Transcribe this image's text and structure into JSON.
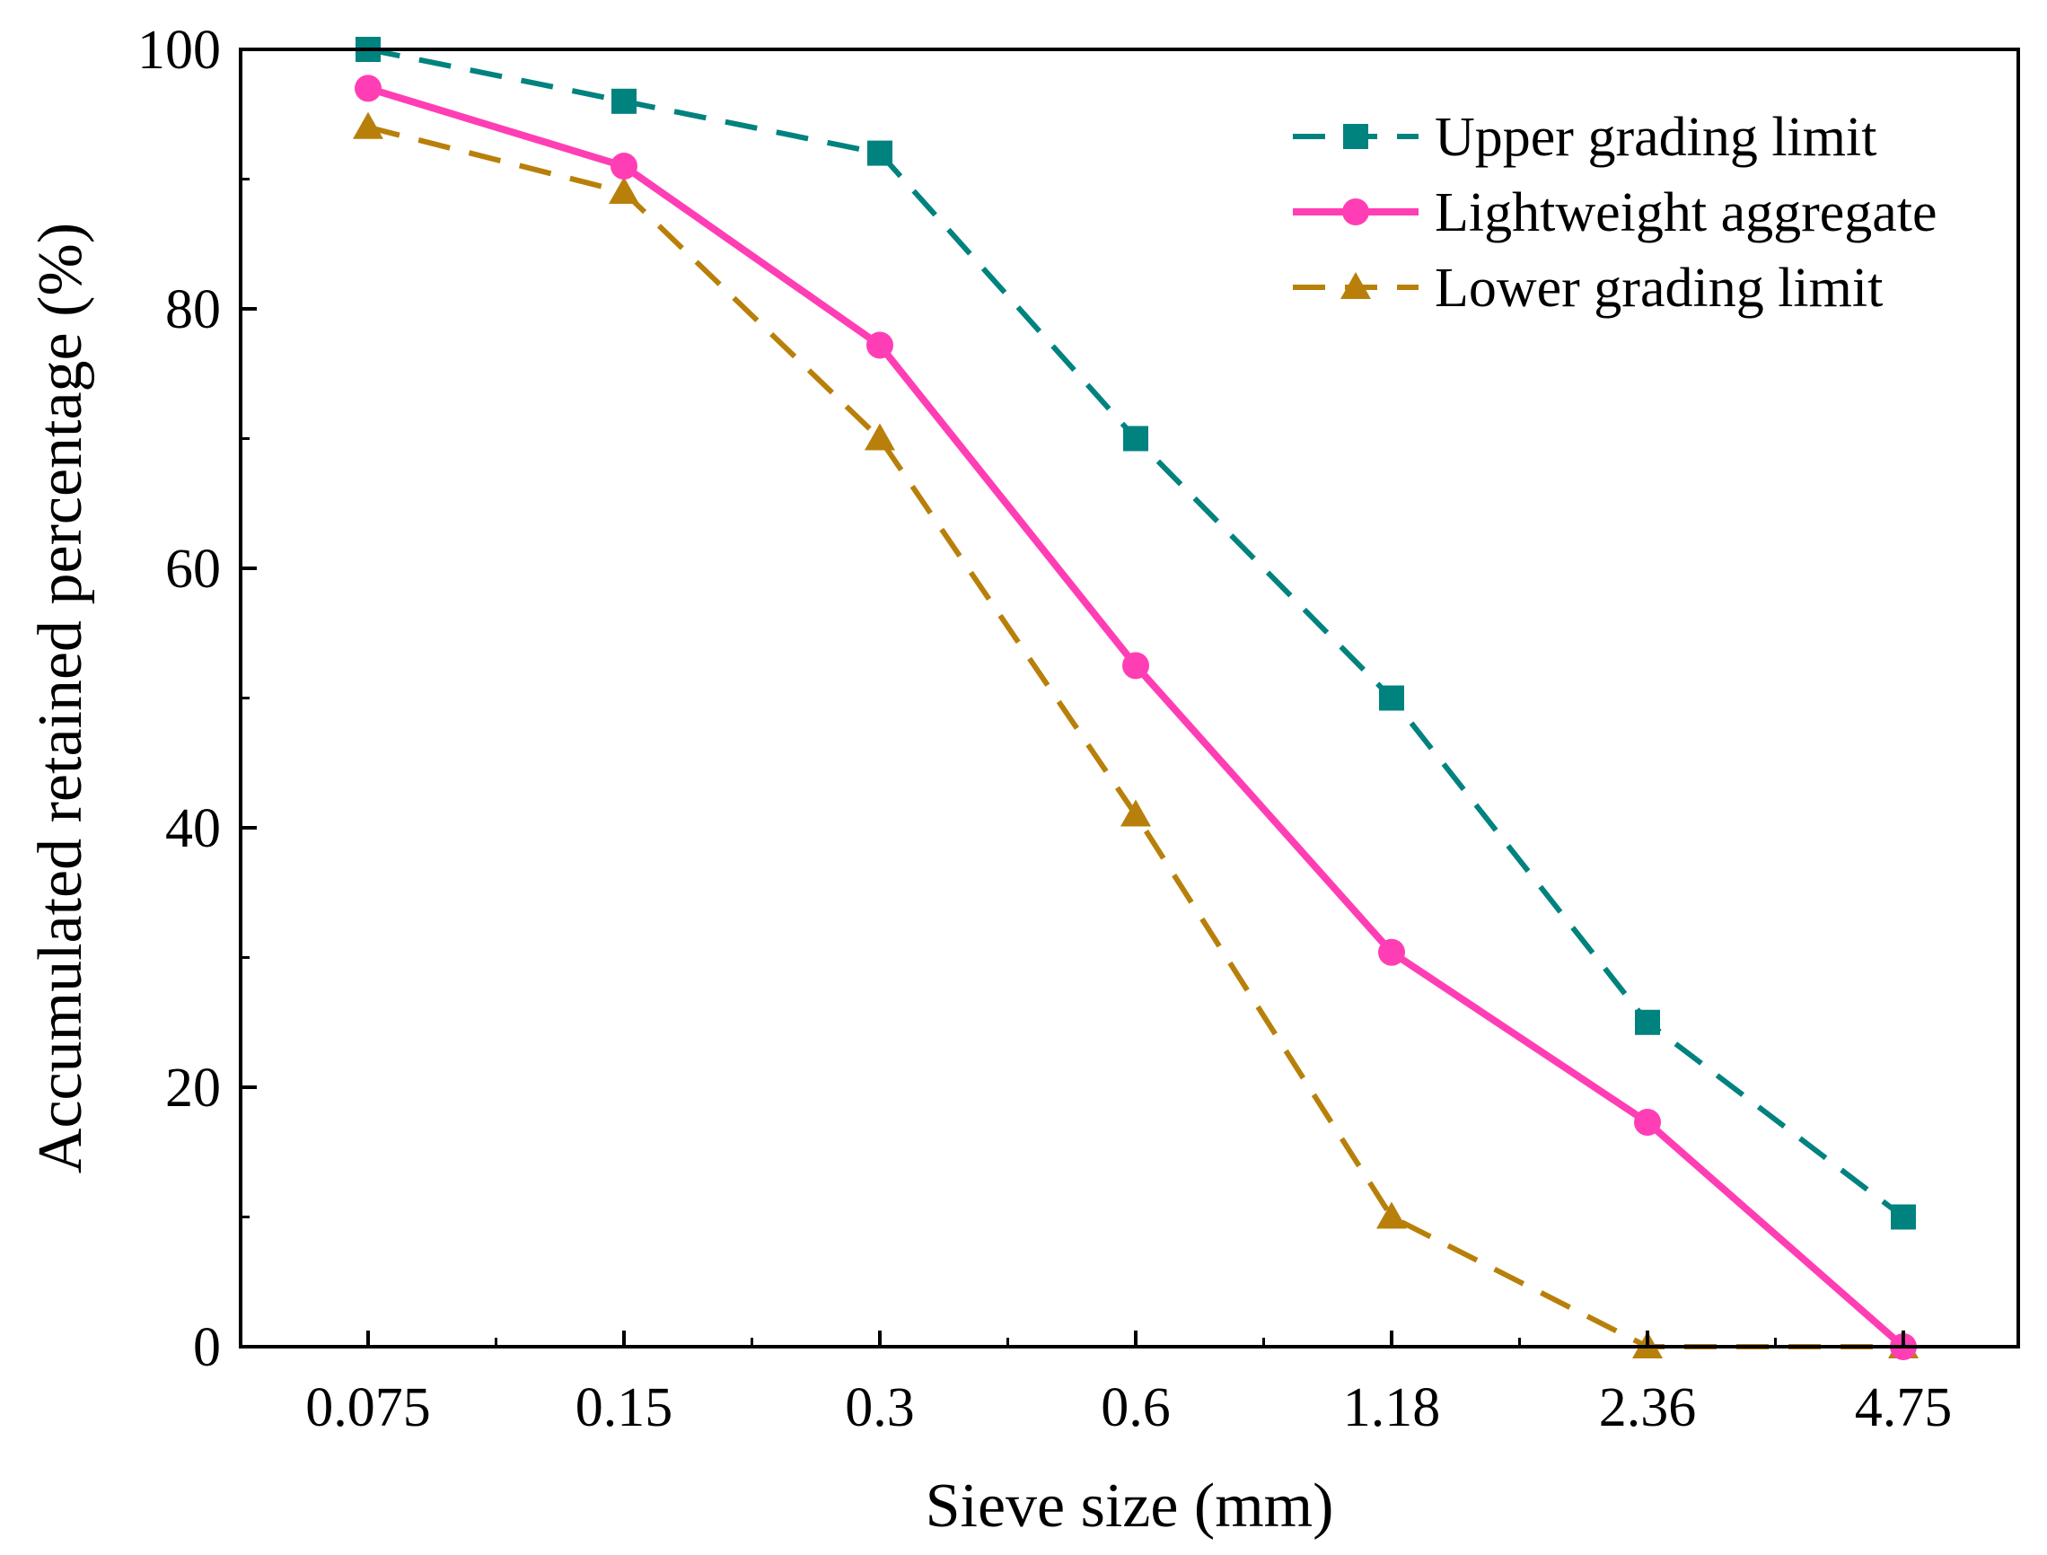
{
  "chart_data": {
    "type": "line",
    "xlabel": "Sieve size (mm)",
    "ylabel": "Accumulated retained percentage (%)",
    "categories": [
      "0.075",
      "0.15",
      "0.3",
      "0.6",
      "1.18",
      "2.36",
      "4.75"
    ],
    "ylim": [
      0,
      100
    ],
    "yticks": [
      0,
      20,
      40,
      60,
      80,
      100
    ],
    "ytick_labels": [
      "0",
      "20",
      "40",
      "60",
      "80",
      "100"
    ],
    "grid": false,
    "legend_position": "top-right",
    "series": [
      {
        "name": "Upper grading limit",
        "values": [
          100,
          96,
          92,
          70,
          50,
          25,
          10
        ],
        "color": "#00827F",
        "line_style": "dashed",
        "marker": "square"
      },
      {
        "name": "Lightweight aggregate",
        "values": [
          97,
          91,
          77.2,
          52.5,
          30.4,
          17.3,
          0
        ],
        "color": "#FF3EB5",
        "line_style": "solid",
        "marker": "circle"
      },
      {
        "name": "Lower grading limit",
        "values": [
          94,
          89,
          70,
          41,
          10,
          0,
          0
        ],
        "color": "#B8800A",
        "line_style": "dashed",
        "marker": "triangle"
      }
    ]
  }
}
